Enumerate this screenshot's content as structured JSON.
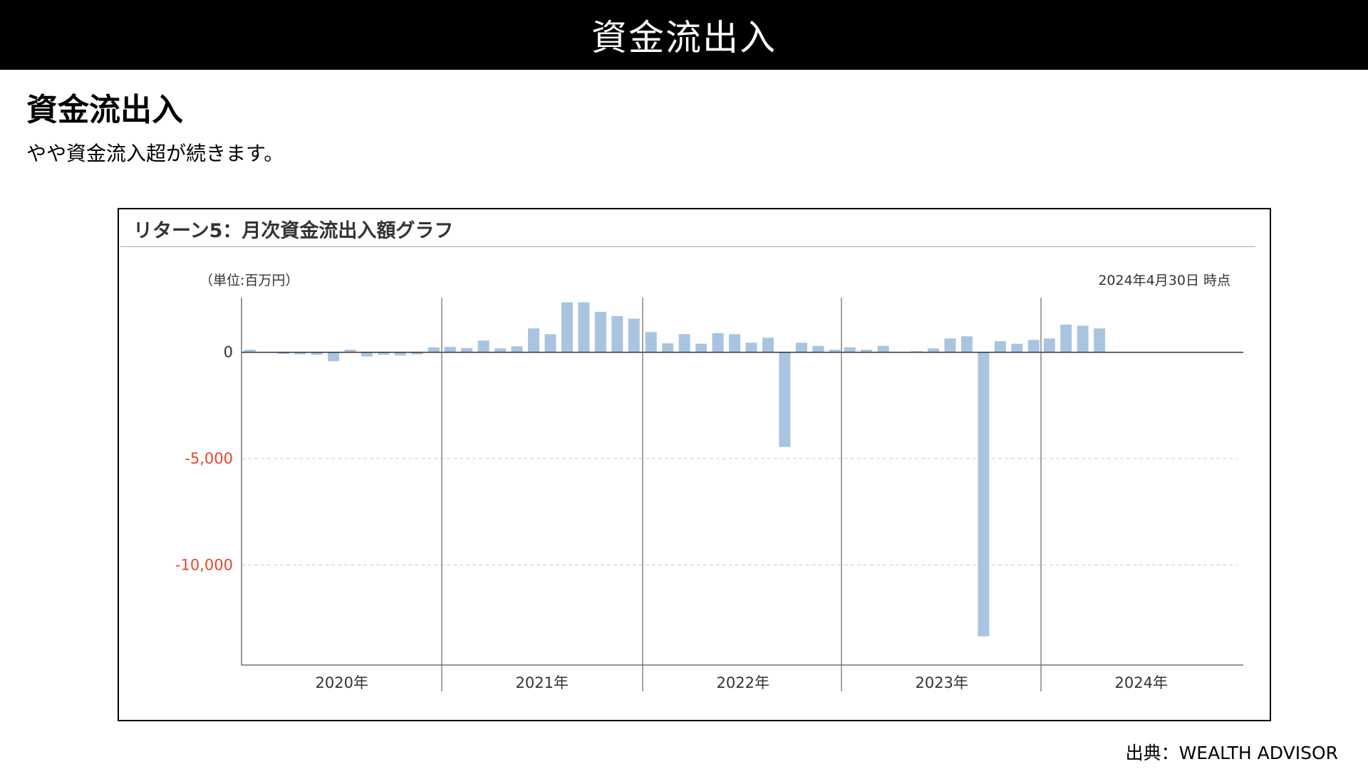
{
  "banner": {
    "title": "資金流出入"
  },
  "section": {
    "heading": "資金流出入",
    "subtitle": "やや資金流入超が続きます。"
  },
  "chart_data": {
    "type": "bar",
    "title": "リターン5：月次資金流出入額グラフ",
    "unit_label": "（単位:百万円）",
    "as_of_label": "2024年4月30日 時点",
    "ylim": [
      -14700,
      2500
    ],
    "y_ticks": [
      {
        "value": 0,
        "label": "0",
        "color": "#333333"
      },
      {
        "value": -5000,
        "label": "-5,000",
        "color": "#e8452c"
      },
      {
        "value": -10000,
        "label": "-10,000",
        "color": "#e8452c"
      }
    ],
    "year_labels": [
      "2020年",
      "2021年",
      "2022年",
      "2023年",
      "2024年"
    ],
    "months_per_year": 12,
    "bar_color": "#a9c4e1",
    "grid": "dashed horizontal at -5,000 and -10,000; vertical year dividers",
    "values": [
      120,
      0,
      -80,
      -100,
      -120,
      -420,
      120,
      -200,
      -120,
      -150,
      -100,
      230,
      250,
      200,
      550,
      180,
      280,
      1120,
      850,
      2350,
      2350,
      1900,
      1700,
      1580,
      950,
      420,
      850,
      400,
      900,
      850,
      450,
      680,
      -4450,
      450,
      300,
      120,
      230,
      120,
      300,
      0,
      50,
      180,
      650,
      750,
      -13350,
      520,
      400,
      580,
      650,
      1300,
      1250,
      1120
    ]
  },
  "source": {
    "text": "出典：WEALTH ADVISOR"
  }
}
